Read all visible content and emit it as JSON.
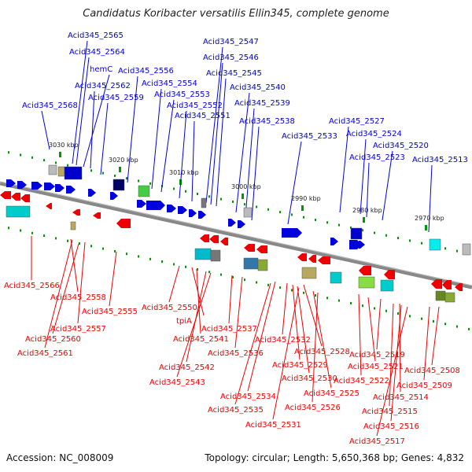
{
  "title": "Candidatus Koribacter versatilis Ellin345, complete genome",
  "accession": "Accession: NC_008009",
  "summary": "Topology: circular; Length: 5,650,368 bp; Genes: 4,832",
  "colors": {
    "forward": "#0000dd",
    "reverse": "#ee0000",
    "backbone": "#888888",
    "tick": "#009900"
  },
  "kbp_labels": [
    "3030 kbp",
    "3020 kbp",
    "3010 kbp",
    "3000 kbp",
    "2990 kbp",
    "2980 kbp",
    "2970 kbp"
  ],
  "forward_labels": [
    "Acid345_2565",
    "Acid345_2564",
    "hemC",
    "Acid345_2562",
    "Acid345_2568",
    "Acid345_2559",
    "Acid345_2556",
    "Acid345_2554",
    "Acid345_2553",
    "Acid345_2552",
    "Acid345_2551",
    "Acid345_2547",
    "Acid345_2546",
    "Acid345_2545",
    "Acid345_2540",
    "Acid345_2539",
    "Acid345_2538",
    "Acid345_2533",
    "Acid345_2527",
    "Acid345_2524",
    "Acid345_2520",
    "Acid345_2523",
    "Acid345_2513"
  ],
  "reverse_labels": [
    "Acid345_2566",
    "Acid345_2558",
    "Acid345_2555",
    "Acid345_2557",
    "Acid345_2560",
    "Acid345_2561",
    "Acid345_2550",
    "tpiA",
    "Acid345_2541",
    "Acid345_2542",
    "Acid345_2543",
    "Acid345_2537",
    "Acid345_2536",
    "Acid345_2532",
    "Acid345_2528",
    "Acid345_2529",
    "Acid345_2530",
    "Acid345_2525",
    "Acid345_2534",
    "Acid345_2535",
    "Acid345_2526",
    "Acid345_2531",
    "Acid345_2521",
    "Acid345_2522",
    "Acid345_2519",
    "Acid345_2514",
    "Acid345_2515",
    "Acid345_2516",
    "Acid345_2517",
    "Acid345_2508",
    "Acid345_2509"
  ]
}
